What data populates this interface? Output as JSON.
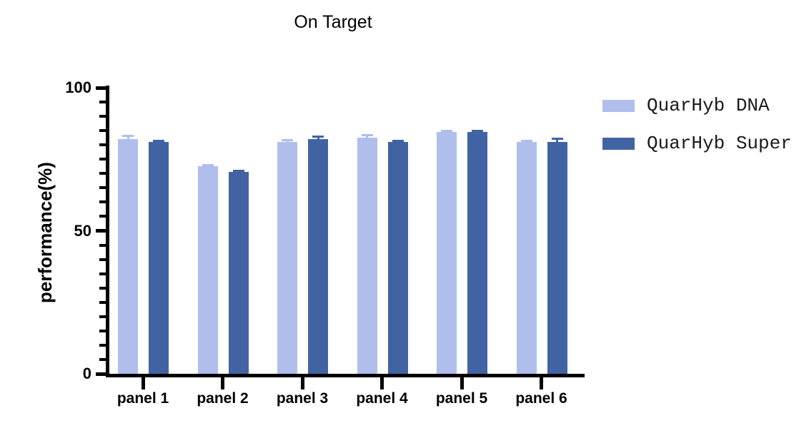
{
  "title": "On Target",
  "chart_data": {
    "type": "bar",
    "title": "On Target",
    "xlabel": "",
    "ylabel": "performance(%)",
    "categories": [
      "panel 1",
      "panel 2",
      "panel 3",
      "panel 4",
      "panel 5",
      "panel 6"
    ],
    "series": [
      {
        "name": "QuarHyb DNA",
        "color": "#AFBEEB",
        "values": [
          82,
          72.5,
          81,
          82.5,
          84.5,
          81
        ],
        "errors": [
          1.2,
          0.5,
          0.6,
          1.0,
          0.4,
          0.4
        ]
      },
      {
        "name": "QuarHyb Super",
        "color": "#4163A4",
        "values": [
          81,
          70.5,
          82,
          81,
          84.5,
          81
        ],
        "errors": [
          0.4,
          0.4,
          1.0,
          0.4,
          0.5,
          1.1
        ]
      }
    ],
    "ylim": [
      0,
      100
    ],
    "yticks": [
      0,
      50,
      100
    ],
    "minor_tick_step": 5,
    "error_bars": "sd, upper only visible",
    "grid": false,
    "legend_position": "right",
    "axis_color": "#000000",
    "background_color": "#ffffff"
  }
}
